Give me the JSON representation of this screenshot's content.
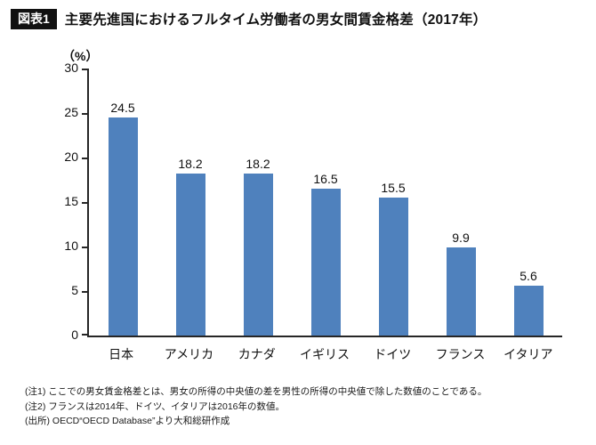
{
  "header": {
    "badge": "図表1",
    "title": "主要先進国におけるフルタイム労働者の男女間賃金格差（2017年）"
  },
  "chart_data": {
    "type": "bar",
    "title": "主要先進国におけるフルタイム労働者の男女間賃金格差（2017年）",
    "categories": [
      "日本",
      "アメリカ",
      "カナダ",
      "イギリス",
      "ドイツ",
      "フランス",
      "イタリア"
    ],
    "values": [
      24.5,
      18.2,
      18.2,
      16.5,
      15.5,
      9.9,
      5.6
    ],
    "unit_label": "（%）",
    "xlabel": "",
    "ylabel": "",
    "ylim": [
      0,
      30
    ],
    "yticks": [
      0,
      5,
      10,
      15,
      20,
      25,
      30
    ],
    "bar_color": "#4F81BD",
    "grid": false,
    "legend_position": "none",
    "data_labels": true
  },
  "notes": [
    "(注1) ここでの男女賃金格差とは、男女の所得の中央値の差を男性の所得の中央値で除した数値のことである。",
    "(注2) フランスは2014年、ドイツ、イタリアは2016年の数値。",
    "(出所) OECD“OECD Database”より大和総研作成"
  ]
}
